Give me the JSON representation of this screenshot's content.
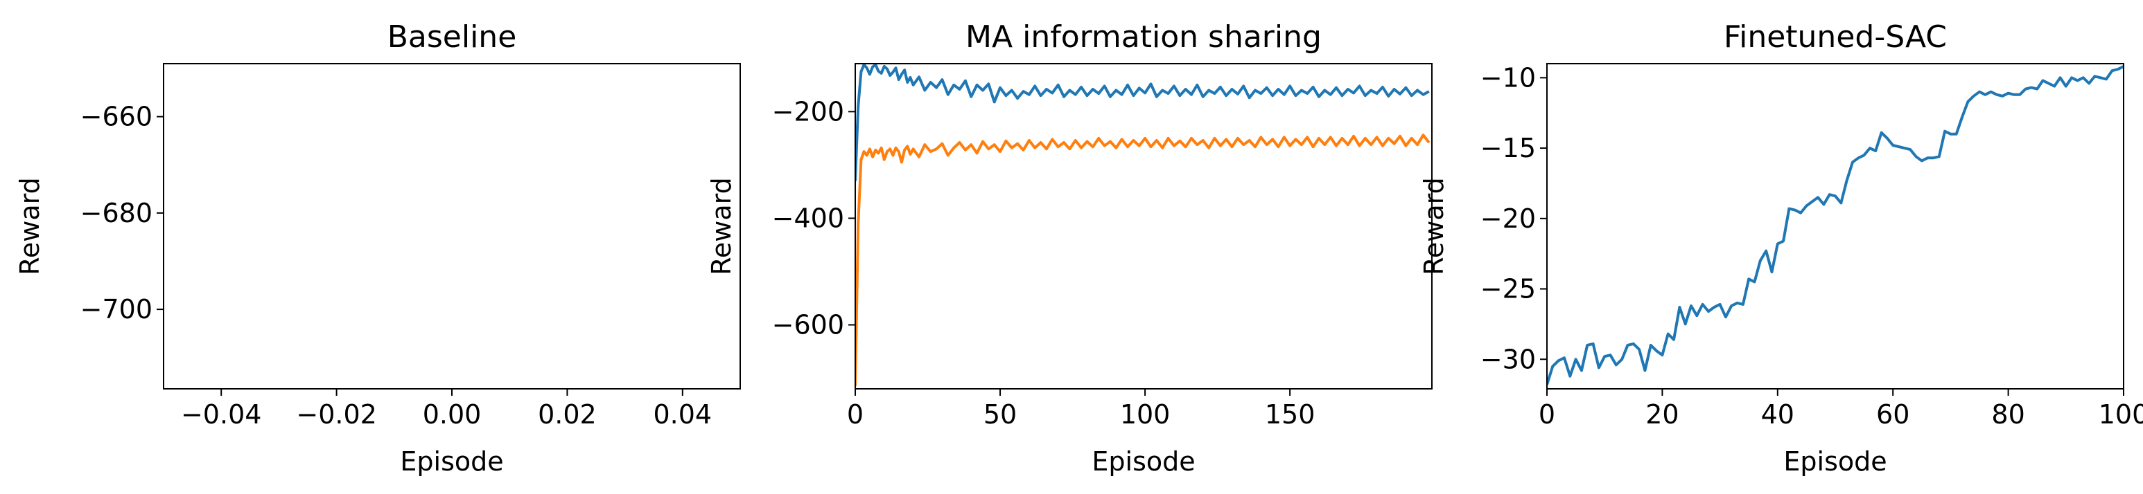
{
  "chart_data": [
    {
      "type": "line",
      "title": "Baseline",
      "xlabel": "Episode",
      "ylabel": "Reward",
      "xlim": [
        -0.05,
        0.05
      ],
      "ylim": [
        -716.5,
        -649
      ],
      "xticks": [
        -0.04,
        -0.02,
        0.0,
        0.02,
        0.04
      ],
      "xtick_labels": [
        "−0.04",
        "−0.02",
        "0.00",
        "0.02",
        "0.04"
      ],
      "yticks": [
        -660,
        -680,
        -700
      ],
      "ytick_labels": [
        "−660",
        "−680",
        "−700"
      ],
      "series": [],
      "grid": false
    },
    {
      "type": "line",
      "title": "MA information sharing",
      "xlabel": "Episode",
      "ylabel": "Reward",
      "xlim": [
        0,
        199
      ],
      "ylim": [
        -720,
        -110
      ],
      "xticks": [
        0,
        50,
        100,
        150
      ],
      "xtick_labels": [
        "0",
        "50",
        "100",
        "150"
      ],
      "yticks": [
        -200,
        -400,
        -600
      ],
      "ytick_labels": [
        "−200",
        "−400",
        "−600"
      ],
      "series": [
        {
          "color": "#1f77b4",
          "x": [
            0,
            1,
            2,
            3,
            4,
            5,
            6,
            7,
            8,
            9,
            10,
            11,
            12,
            13,
            14,
            15,
            16,
            17,
            18,
            19,
            20,
            22,
            24,
            26,
            28,
            30,
            32,
            34,
            36,
            38,
            40,
            42,
            44,
            46,
            48,
            50,
            52,
            54,
            56,
            58,
            60,
            62,
            64,
            66,
            68,
            70,
            72,
            74,
            76,
            78,
            80,
            82,
            84,
            86,
            88,
            90,
            92,
            94,
            96,
            98,
            100,
            102,
            104,
            106,
            108,
            110,
            112,
            114,
            116,
            118,
            120,
            122,
            124,
            126,
            128,
            130,
            132,
            134,
            136,
            138,
            140,
            142,
            144,
            146,
            148,
            150,
            152,
            154,
            156,
            158,
            160,
            162,
            164,
            166,
            168,
            170,
            172,
            174,
            176,
            178,
            180,
            182,
            184,
            186,
            188,
            190,
            192,
            194,
            196,
            198
          ],
          "values": [
            -330,
            -190,
            -125,
            -112,
            -118,
            -130,
            -116,
            -112,
            -124,
            -128,
            -115,
            -120,
            -132,
            -126,
            -118,
            -140,
            -130,
            -122,
            -145,
            -136,
            -150,
            -135,
            -160,
            -145,
            -155,
            -140,
            -168,
            -150,
            -158,
            -142,
            -172,
            -150,
            -160,
            -148,
            -182,
            -155,
            -170,
            -160,
            -175,
            -162,
            -168,
            -152,
            -170,
            -158,
            -165,
            -150,
            -172,
            -160,
            -168,
            -154,
            -170,
            -158,
            -166,
            -152,
            -172,
            -160,
            -168,
            -150,
            -170,
            -156,
            -165,
            -148,
            -172,
            -160,
            -166,
            -152,
            -170,
            -158,
            -168,
            -150,
            -172,
            -160,
            -166,
            -154,
            -170,
            -158,
            -167,
            -152,
            -174,
            -160,
            -166,
            -155,
            -170,
            -158,
            -168,
            -152,
            -170,
            -160,
            -166,
            -154,
            -172,
            -160,
            -168,
            -155,
            -170,
            -158,
            -165,
            -152,
            -170,
            -160,
            -166,
            -154,
            -171,
            -158,
            -167,
            -155,
            -170,
            -160,
            -168,
            -162
          ]
        },
        {
          "color": "#ff7f0e",
          "x": [
            0,
            1,
            2,
            3,
            4,
            5,
            6,
            7,
            8,
            9,
            10,
            11,
            12,
            13,
            14,
            15,
            16,
            17,
            18,
            19,
            20,
            22,
            24,
            26,
            28,
            30,
            32,
            34,
            36,
            38,
            40,
            42,
            44,
            46,
            48,
            50,
            52,
            54,
            56,
            58,
            60,
            62,
            64,
            66,
            68,
            70,
            72,
            74,
            76,
            78,
            80,
            82,
            84,
            86,
            88,
            90,
            92,
            94,
            96,
            98,
            100,
            102,
            104,
            106,
            108,
            110,
            112,
            114,
            116,
            118,
            120,
            122,
            124,
            126,
            128,
            130,
            132,
            134,
            136,
            138,
            140,
            142,
            144,
            146,
            148,
            150,
            152,
            154,
            156,
            158,
            160,
            162,
            164,
            166,
            168,
            170,
            172,
            174,
            176,
            178,
            180,
            182,
            184,
            186,
            188,
            190,
            192,
            194,
            196,
            198
          ],
          "values": [
            -715,
            -410,
            -290,
            -275,
            -282,
            -270,
            -285,
            -272,
            -278,
            -268,
            -290,
            -275,
            -270,
            -282,
            -268,
            -275,
            -295,
            -272,
            -265,
            -280,
            -270,
            -285,
            -262,
            -275,
            -270,
            -260,
            -282,
            -268,
            -258,
            -272,
            -262,
            -278,
            -256,
            -270,
            -262,
            -275,
            -255,
            -268,
            -260,
            -272,
            -254,
            -268,
            -258,
            -270,
            -252,
            -266,
            -258,
            -270,
            -254,
            -268,
            -256,
            -266,
            -250,
            -264,
            -256,
            -268,
            -252,
            -266,
            -254,
            -264,
            -250,
            -266,
            -254,
            -268,
            -250,
            -264,
            -255,
            -266,
            -250,
            -262,
            -254,
            -268,
            -250,
            -264,
            -252,
            -266,
            -250,
            -262,
            -254,
            -266,
            -248,
            -262,
            -252,
            -266,
            -248,
            -264,
            -252,
            -262,
            -248,
            -266,
            -250,
            -262,
            -248,
            -264,
            -250,
            -262,
            -246,
            -264,
            -250,
            -262,
            -248,
            -264,
            -250,
            -260,
            -246,
            -264,
            -250,
            -262,
            -244,
            -258
          ]
        }
      ],
      "grid": false
    },
    {
      "type": "line",
      "title": "Finetuned-SAC",
      "xlabel": "Episode",
      "ylabel": "Reward",
      "xlim": [
        0,
        100
      ],
      "ylim": [
        -32.1,
        -9.0
      ],
      "xticks": [
        0,
        20,
        40,
        60,
        80,
        100
      ],
      "xtick_labels": [
        "0",
        "20",
        "40",
        "60",
        "80",
        "100"
      ],
      "yticks": [
        -10,
        -15,
        -20,
        -25,
        -30
      ],
      "ytick_labels": [
        "−10",
        "−15",
        "−20",
        "−25",
        "−30"
      ],
      "series": [
        {
          "color": "#1f77b4",
          "x": [
            0,
            1,
            2,
            3,
            4,
            5,
            6,
            7,
            8,
            9,
            10,
            11,
            12,
            13,
            14,
            15,
            16,
            17,
            18,
            19,
            20,
            21,
            22,
            23,
            24,
            25,
            26,
            27,
            28,
            29,
            30,
            31,
            32,
            33,
            34,
            35,
            36,
            37,
            38,
            39,
            40,
            41,
            42,
            43,
            44,
            45,
            46,
            47,
            48,
            49,
            50,
            51,
            52,
            53,
            54,
            55,
            56,
            57,
            58,
            59,
            60,
            61,
            62,
            63,
            64,
            65,
            66,
            67,
            68,
            69,
            70,
            71,
            72,
            73,
            74,
            75,
            76,
            77,
            78,
            79,
            80,
            81,
            82,
            83,
            84,
            85,
            86,
            87,
            88,
            89,
            90,
            91,
            92,
            93,
            94,
            95,
            96,
            97,
            98,
            99,
            100
          ],
          "values": [
            -31.8,
            -30.5,
            -30.1,
            -29.9,
            -31.2,
            -30.0,
            -30.8,
            -29.0,
            -28.9,
            -30.6,
            -29.8,
            -29.7,
            -30.4,
            -30.0,
            -29.0,
            -28.9,
            -29.3,
            -30.8,
            -29.0,
            -29.4,
            -29.7,
            -28.2,
            -28.6,
            -26.3,
            -27.5,
            -26.2,
            -26.9,
            -26.1,
            -26.6,
            -26.3,
            -26.1,
            -27.0,
            -26.2,
            -26.0,
            -26.1,
            -24.3,
            -24.5,
            -23.0,
            -22.3,
            -23.8,
            -21.8,
            -21.6,
            -19.3,
            -19.4,
            -19.6,
            -19.1,
            -18.8,
            -18.5,
            -19.0,
            -18.3,
            -18.4,
            -18.9,
            -17.3,
            -16.0,
            -15.7,
            -15.5,
            -15.0,
            -15.2,
            -13.9,
            -14.3,
            -14.8,
            -14.9,
            -15.0,
            -15.1,
            -15.6,
            -15.9,
            -15.7,
            -15.7,
            -15.6,
            -13.8,
            -14.0,
            -14.0,
            -12.8,
            -11.7,
            -11.3,
            -11.0,
            -11.2,
            -11.0,
            -11.2,
            -11.3,
            -11.1,
            -11.2,
            -11.2,
            -10.8,
            -10.7,
            -10.8,
            -10.2,
            -10.4,
            -10.6,
            -10.0,
            -10.6,
            -10.0,
            -10.2,
            -10.0,
            -10.4,
            -9.9,
            -10.0,
            -10.1,
            -9.5,
            -9.4,
            -9.2
          ]
        }
      ],
      "grid": false
    }
  ]
}
